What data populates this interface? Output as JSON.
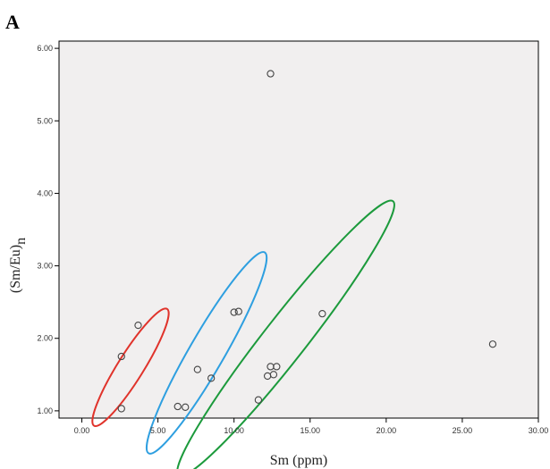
{
  "panel_label": "A",
  "chart_data": {
    "type": "scatter",
    "title": "",
    "xlabel": "Sm (ppm)",
    "ylabel": "(Sm/Eu)",
    "ylabel_subscript": "n",
    "xlim": [
      -1.5,
      30.0
    ],
    "ylim": [
      0.9,
      6.1
    ],
    "xticks": [
      0,
      5,
      10,
      15,
      20,
      25,
      30
    ],
    "xtick_labels": [
      "0.00",
      "5.00",
      "10.00",
      "15.00",
      "20.00",
      "25.00",
      "30.00"
    ],
    "yticks": [
      1,
      2,
      3,
      4,
      5,
      6
    ],
    "ytick_labels": [
      "1.00",
      "2.00",
      "3.00",
      "4.00",
      "5.00",
      "6.00"
    ],
    "grid": false,
    "plot_background": "#f1efef",
    "marker_color": "#444444",
    "points": [
      {
        "x": 12.4,
        "y": 5.65
      },
      {
        "x": 27.0,
        "y": 1.92
      },
      {
        "x": 3.7,
        "y": 2.18
      },
      {
        "x": 2.6,
        "y": 1.75
      },
      {
        "x": 2.6,
        "y": 1.03
      },
      {
        "x": 6.3,
        "y": 1.06
      },
      {
        "x": 6.8,
        "y": 1.05
      },
      {
        "x": 7.6,
        "y": 1.57
      },
      {
        "x": 8.5,
        "y": 1.45
      },
      {
        "x": 10.0,
        "y": 2.36
      },
      {
        "x": 10.3,
        "y": 2.37
      },
      {
        "x": 11.6,
        "y": 1.15
      },
      {
        "x": 12.2,
        "y": 1.48
      },
      {
        "x": 12.4,
        "y": 1.61
      },
      {
        "x": 12.6,
        "y": 1.5
      },
      {
        "x": 12.8,
        "y": 1.61
      },
      {
        "x": 15.8,
        "y": 2.34
      }
    ],
    "groups": [
      {
        "color": "#e0332b",
        "cx": 3.2,
        "cy": 1.6,
        "rx": 0.95,
        "ry": 0.85,
        "angle": 58
      },
      {
        "color": "#2e9fe0",
        "cx": 8.2,
        "cy": 1.8,
        "rx": 1.6,
        "ry": 1.15,
        "angle": 60
      },
      {
        "color": "#1c9a3c",
        "cx": 13.4,
        "cy": 2.0,
        "rx": 2.4,
        "ry": 1.4,
        "angle": 52
      }
    ]
  }
}
